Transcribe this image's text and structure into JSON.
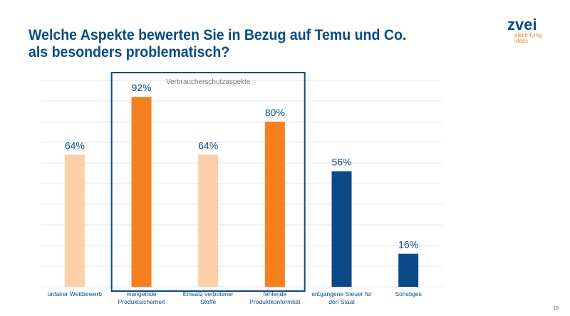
{
  "title": "Welche Aspekte bewerten Sie in Bezug auf Temu und Co. als besonders problematisch?",
  "logo": {
    "word": "zvei",
    "tagline1": "electrifying",
    "tagline2": "ideas"
  },
  "page_number": "10",
  "chart_data": {
    "type": "bar",
    "categories": [
      "unfairer Wettbewerb",
      "mangelnde Produktsicherheit",
      "Einsatz verbotener Stoffe",
      "fehlende Produktkonformität",
      "entgangene Steuer für den Staat",
      "Sonstiges"
    ],
    "category_lines": [
      [
        "unfairer Wettbewerb"
      ],
      [
        "mangelnde",
        "Produktsicherheit"
      ],
      [
        "Einsatz verbotener",
        "Stoffe"
      ],
      [
        "fehlende",
        "Produktkonformität"
      ],
      [
        "entgangene Steuer für",
        "den Staat"
      ],
      [
        "Sonstiges"
      ]
    ],
    "values": [
      64,
      92,
      64,
      80,
      56,
      16
    ],
    "data_labels": [
      "64%",
      "92%",
      "64%",
      "80%",
      "56%",
      "16%"
    ],
    "colors": [
      "#fcd0a8",
      "#f7801e",
      "#fcd0a8",
      "#f7801e",
      "#0b4a86",
      "#0b4a86"
    ],
    "ylim": [
      0,
      100
    ],
    "grid": true,
    "group_annotation": {
      "label": "Verbraucherschutzaspekte",
      "categories": [
        "mangelnde Produktsicherheit",
        "Einsatz verbotener Stoffe",
        "fehlende Produktkonformität"
      ],
      "color": "#0b4a86"
    }
  }
}
